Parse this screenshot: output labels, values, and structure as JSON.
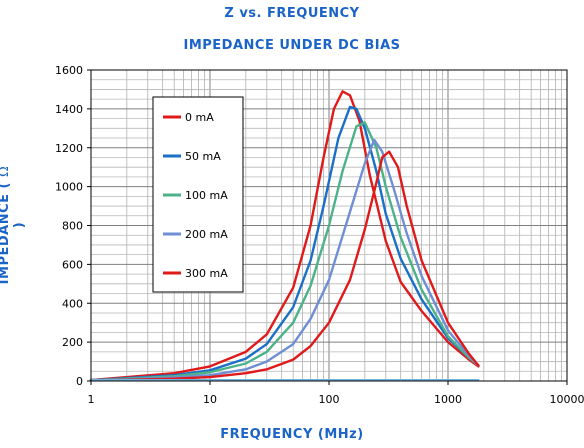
{
  "chart_data": {
    "type": "line",
    "title": "Z vs. FREQUENCY",
    "subtitle": "IMPEDANCE UNDER DC BIAS",
    "xlabel": "FREQUENCY (MHz)",
    "ylabel_text": "IMPEDANCE (",
    "ylabel_symbol": "Ω",
    "ylabel_close": ")",
    "xscale": "log",
    "xlim": [
      1,
      10000
    ],
    "ylim": [
      0,
      1600
    ],
    "x_ticks": [
      "1",
      "10",
      "100",
      "1000",
      "10000"
    ],
    "y_ticks": [
      "0",
      "200",
      "400",
      "600",
      "800",
      "1000",
      "1200",
      "1400",
      "1600"
    ],
    "grid": true,
    "legend_position": "top-left",
    "series": [
      {
        "name": "0 mA",
        "color": "#e01a1a",
        "points": [
          [
            1,
            5
          ],
          [
            2,
            20
          ],
          [
            5,
            40
          ],
          [
            10,
            75
          ],
          [
            20,
            150
          ],
          [
            30,
            240
          ],
          [
            50,
            480
          ],
          [
            70,
            800
          ],
          [
            90,
            1150
          ],
          [
            110,
            1400
          ],
          [
            130,
            1490
          ],
          [
            150,
            1470
          ],
          [
            180,
            1340
          ],
          [
            220,
            1060
          ],
          [
            300,
            720
          ],
          [
            400,
            510
          ],
          [
            600,
            360
          ],
          [
            1000,
            200
          ],
          [
            1500,
            110
          ],
          [
            1800,
            75
          ]
        ]
      },
      {
        "name": "50 mA",
        "color": "#1a6fc7",
        "points": [
          [
            1,
            5
          ],
          [
            2,
            15
          ],
          [
            5,
            30
          ],
          [
            10,
            55
          ],
          [
            20,
            115
          ],
          [
            30,
            190
          ],
          [
            50,
            380
          ],
          [
            70,
            620
          ],
          [
            90,
            900
          ],
          [
            120,
            1250
          ],
          [
            150,
            1410
          ],
          [
            170,
            1400
          ],
          [
            200,
            1300
          ],
          [
            250,
            1080
          ],
          [
            300,
            860
          ],
          [
            400,
            630
          ],
          [
            600,
            420
          ],
          [
            1000,
            220
          ],
          [
            1500,
            120
          ],
          [
            1800,
            80
          ]
        ]
      },
      {
        "name": "100 mA",
        "color": "#4cb28a",
        "points": [
          [
            1,
            5
          ],
          [
            2,
            12
          ],
          [
            5,
            25
          ],
          [
            10,
            45
          ],
          [
            20,
            90
          ],
          [
            30,
            150
          ],
          [
            50,
            300
          ],
          [
            70,
            490
          ],
          [
            100,
            800
          ],
          [
            130,
            1080
          ],
          [
            170,
            1310
          ],
          [
            200,
            1330
          ],
          [
            250,
            1200
          ],
          [
            300,
            1000
          ],
          [
            400,
            740
          ],
          [
            600,
            470
          ],
          [
            1000,
            230
          ],
          [
            1500,
            120
          ],
          [
            1800,
            80
          ]
        ]
      },
      {
        "name": "200 mA",
        "color": "#6f8fd4",
        "points": [
          [
            1,
            5
          ],
          [
            2,
            8
          ],
          [
            5,
            18
          ],
          [
            10,
            30
          ],
          [
            20,
            60
          ],
          [
            30,
            100
          ],
          [
            50,
            190
          ],
          [
            70,
            320
          ],
          [
            100,
            520
          ],
          [
            150,
            870
          ],
          [
            200,
            1120
          ],
          [
            240,
            1240
          ],
          [
            280,
            1180
          ],
          [
            350,
            990
          ],
          [
            450,
            760
          ],
          [
            600,
            540
          ],
          [
            1000,
            260
          ],
          [
            1500,
            130
          ],
          [
            1800,
            80
          ]
        ]
      },
      {
        "name": "300 mA",
        "color": "#e01a1a",
        "points": [
          [
            1,
            5
          ],
          [
            2,
            6
          ],
          [
            5,
            12
          ],
          [
            10,
            20
          ],
          [
            20,
            40
          ],
          [
            30,
            60
          ],
          [
            50,
            110
          ],
          [
            70,
            180
          ],
          [
            100,
            300
          ],
          [
            150,
            520
          ],
          [
            200,
            780
          ],
          [
            250,
            1020
          ],
          [
            280,
            1150
          ],
          [
            320,
            1180
          ],
          [
            380,
            1100
          ],
          [
            450,
            900
          ],
          [
            600,
            620
          ],
          [
            1000,
            300
          ],
          [
            1500,
            140
          ],
          [
            1800,
            80
          ]
        ]
      },
      {
        "name": "",
        "color": "#6fb3e0",
        "points": [
          [
            1,
            5
          ],
          [
            10,
            5
          ],
          [
            100,
            5
          ],
          [
            1000,
            5
          ],
          [
            1800,
            5
          ]
        ]
      }
    ]
  }
}
